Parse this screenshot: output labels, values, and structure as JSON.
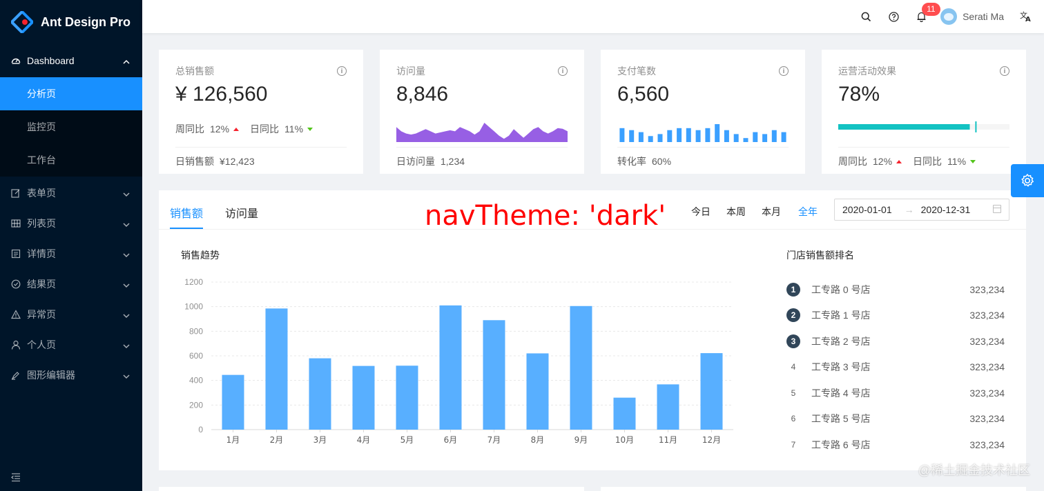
{
  "app": {
    "title": "Ant Design Pro"
  },
  "sidebar": {
    "dashboard": "Dashboard",
    "sub_items": [
      {
        "label": "分析页"
      },
      {
        "label": "监控页"
      },
      {
        "label": "工作台"
      }
    ],
    "items": [
      {
        "label": "表单页"
      },
      {
        "label": "列表页"
      },
      {
        "label": "详情页"
      },
      {
        "label": "结果页"
      },
      {
        "label": "异常页"
      },
      {
        "label": "个人页"
      },
      {
        "label": "图形编辑器"
      }
    ]
  },
  "header": {
    "notification_count": "11",
    "user_name": "Serati Ma"
  },
  "stats": [
    {
      "label": "总销售额",
      "value": "¥ 126,560",
      "trend1_label": "周同比",
      "trend1_value": "12%",
      "trend2_label": "日同比",
      "trend2_value": "11%",
      "footer_label": "日销售额",
      "footer_value": "¥12,423"
    },
    {
      "label": "访问量",
      "value": "8,846",
      "footer_label": "日访问量",
      "footer_value": "1,234",
      "area_values": [
        7,
        5,
        4,
        3.5,
        4,
        5,
        6,
        5,
        4,
        4.5,
        5,
        5.5,
        5,
        7,
        6,
        5,
        3.5,
        5,
        9,
        7,
        5,
        3,
        1.5,
        3,
        6,
        4,
        2,
        4,
        6,
        7,
        5,
        4,
        5,
        6.5,
        6.2,
        5
      ]
    },
    {
      "label": "支付笔数",
      "value": "6,560",
      "footer_label": "转化率",
      "footer_value": "60%",
      "bar_values": [
        7,
        6,
        5,
        3,
        4,
        6,
        7,
        7,
        6,
        7,
        9,
        6,
        4,
        2,
        5,
        4,
        6,
        5
      ]
    },
    {
      "label": "运营活动效果",
      "value": "78%",
      "progress": 0.78,
      "target": 0.8,
      "trend1_label": "周同比",
      "trend1_value": "12%",
      "trend2_label": "日同比",
      "trend2_value": "11%"
    }
  ],
  "sales": {
    "tabs": [
      "销售额",
      "访问量"
    ],
    "ranges": [
      "今日",
      "本周",
      "本月",
      "全年"
    ],
    "date_start": "2020-01-01",
    "date_end": "2020-12-31",
    "chart_title": "销售趋势",
    "rank_title": "门店销售额排名",
    "ranking": [
      {
        "rank": "1",
        "name": "工专路 0 号店",
        "value": "323,234"
      },
      {
        "rank": "2",
        "name": "工专路 1 号店",
        "value": "323,234"
      },
      {
        "rank": "3",
        "name": "工专路 2 号店",
        "value": "323,234"
      },
      {
        "rank": "4",
        "name": "工专路 3 号店",
        "value": "323,234"
      },
      {
        "rank": "5",
        "name": "工专路 4 号店",
        "value": "323,234"
      },
      {
        "rank": "6",
        "name": "工专路 5 号店",
        "value": "323,234"
      },
      {
        "rank": "7",
        "name": "工专路 6 号店",
        "value": "323,234"
      }
    ]
  },
  "chart_data": {
    "type": "bar",
    "title": "销售趋势",
    "categories": [
      "1月",
      "2月",
      "3月",
      "4月",
      "5月",
      "6月",
      "7月",
      "8月",
      "9月",
      "10月",
      "11月",
      "12月"
    ],
    "values": [
      445,
      985,
      580,
      518,
      520,
      1010,
      890,
      620,
      1005,
      260,
      368,
      622
    ],
    "ylim": [
      0,
      1200
    ],
    "yticks": [
      "0",
      "200",
      "400",
      "600",
      "800",
      "1000",
      "1200"
    ],
    "grid": true,
    "color": "#58afff"
  },
  "overlay": "navTheme: 'dark'",
  "watermark": "@稀土掘金技术社区",
  "colors": {
    "primary": "#1890ff",
    "sider": "#001529",
    "area": "#975fe4",
    "progress": "#13c2c2"
  }
}
